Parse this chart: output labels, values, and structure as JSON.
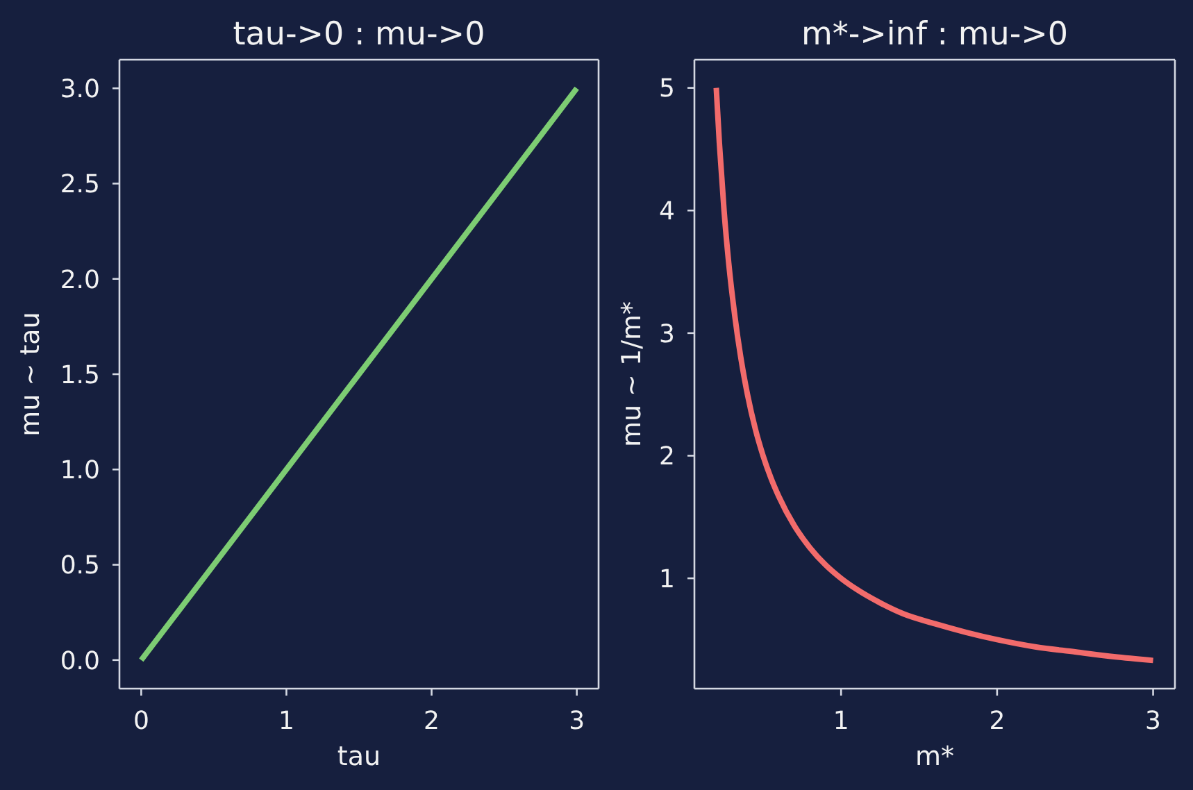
{
  "chart_data": [
    {
      "type": "line",
      "title": "tau->0 : mu->0",
      "xlabel": "tau",
      "ylabel": "mu ~ tau",
      "line_style": "solid",
      "x": [
        0,
        1,
        2,
        3
      ],
      "series": [
        {
          "color": "#7dcd73",
          "values": [
            0,
            1,
            2,
            3
          ]
        }
      ],
      "xlim": [
        -0.15,
        3.15
      ],
      "xticks": [
        0,
        1,
        2,
        3
      ],
      "ylim": [
        -0.15,
        3.15
      ],
      "yticks": [
        {
          "value": 0,
          "label": "0.0"
        },
        0.5,
        {
          "value": 1,
          "label": "1.0"
        },
        1.5,
        {
          "value": 2,
          "label": "2.0"
        },
        2.5,
        {
          "value": 3,
          "label": "3.0"
        }
      ]
    },
    {
      "type": "line",
      "title": "m*->inf : mu->0",
      "xlabel": "m*",
      "ylabel": "mu ~ 1/m*",
      "line_style": "solid",
      "x": [
        0.2,
        0.22,
        0.25,
        0.28,
        0.32,
        0.36,
        0.4,
        0.45,
        0.5,
        0.55,
        0.6,
        0.7,
        0.8,
        0.9,
        1.0,
        1.1,
        1.25,
        1.4,
        1.6,
        1.8,
        2.0,
        2.25,
        2.5,
        2.75,
        3.0
      ],
      "series": [
        {
          "color": "#f26b6b",
          "values": [
            5.0,
            4.55,
            4.0,
            3.57,
            3.13,
            2.78,
            2.5,
            2.22,
            2.0,
            1.82,
            1.67,
            1.43,
            1.25,
            1.11,
            1.0,
            0.91,
            0.8,
            0.71,
            0.63,
            0.56,
            0.5,
            0.44,
            0.4,
            0.36,
            0.33
          ]
        }
      ],
      "xlim": [
        0.06,
        3.14
      ],
      "xticks": [
        1,
        2,
        3
      ],
      "ylim": [
        0.1,
        5.23
      ],
      "yticks": [
        1,
        2,
        3,
        4,
        5
      ]
    }
  ]
}
